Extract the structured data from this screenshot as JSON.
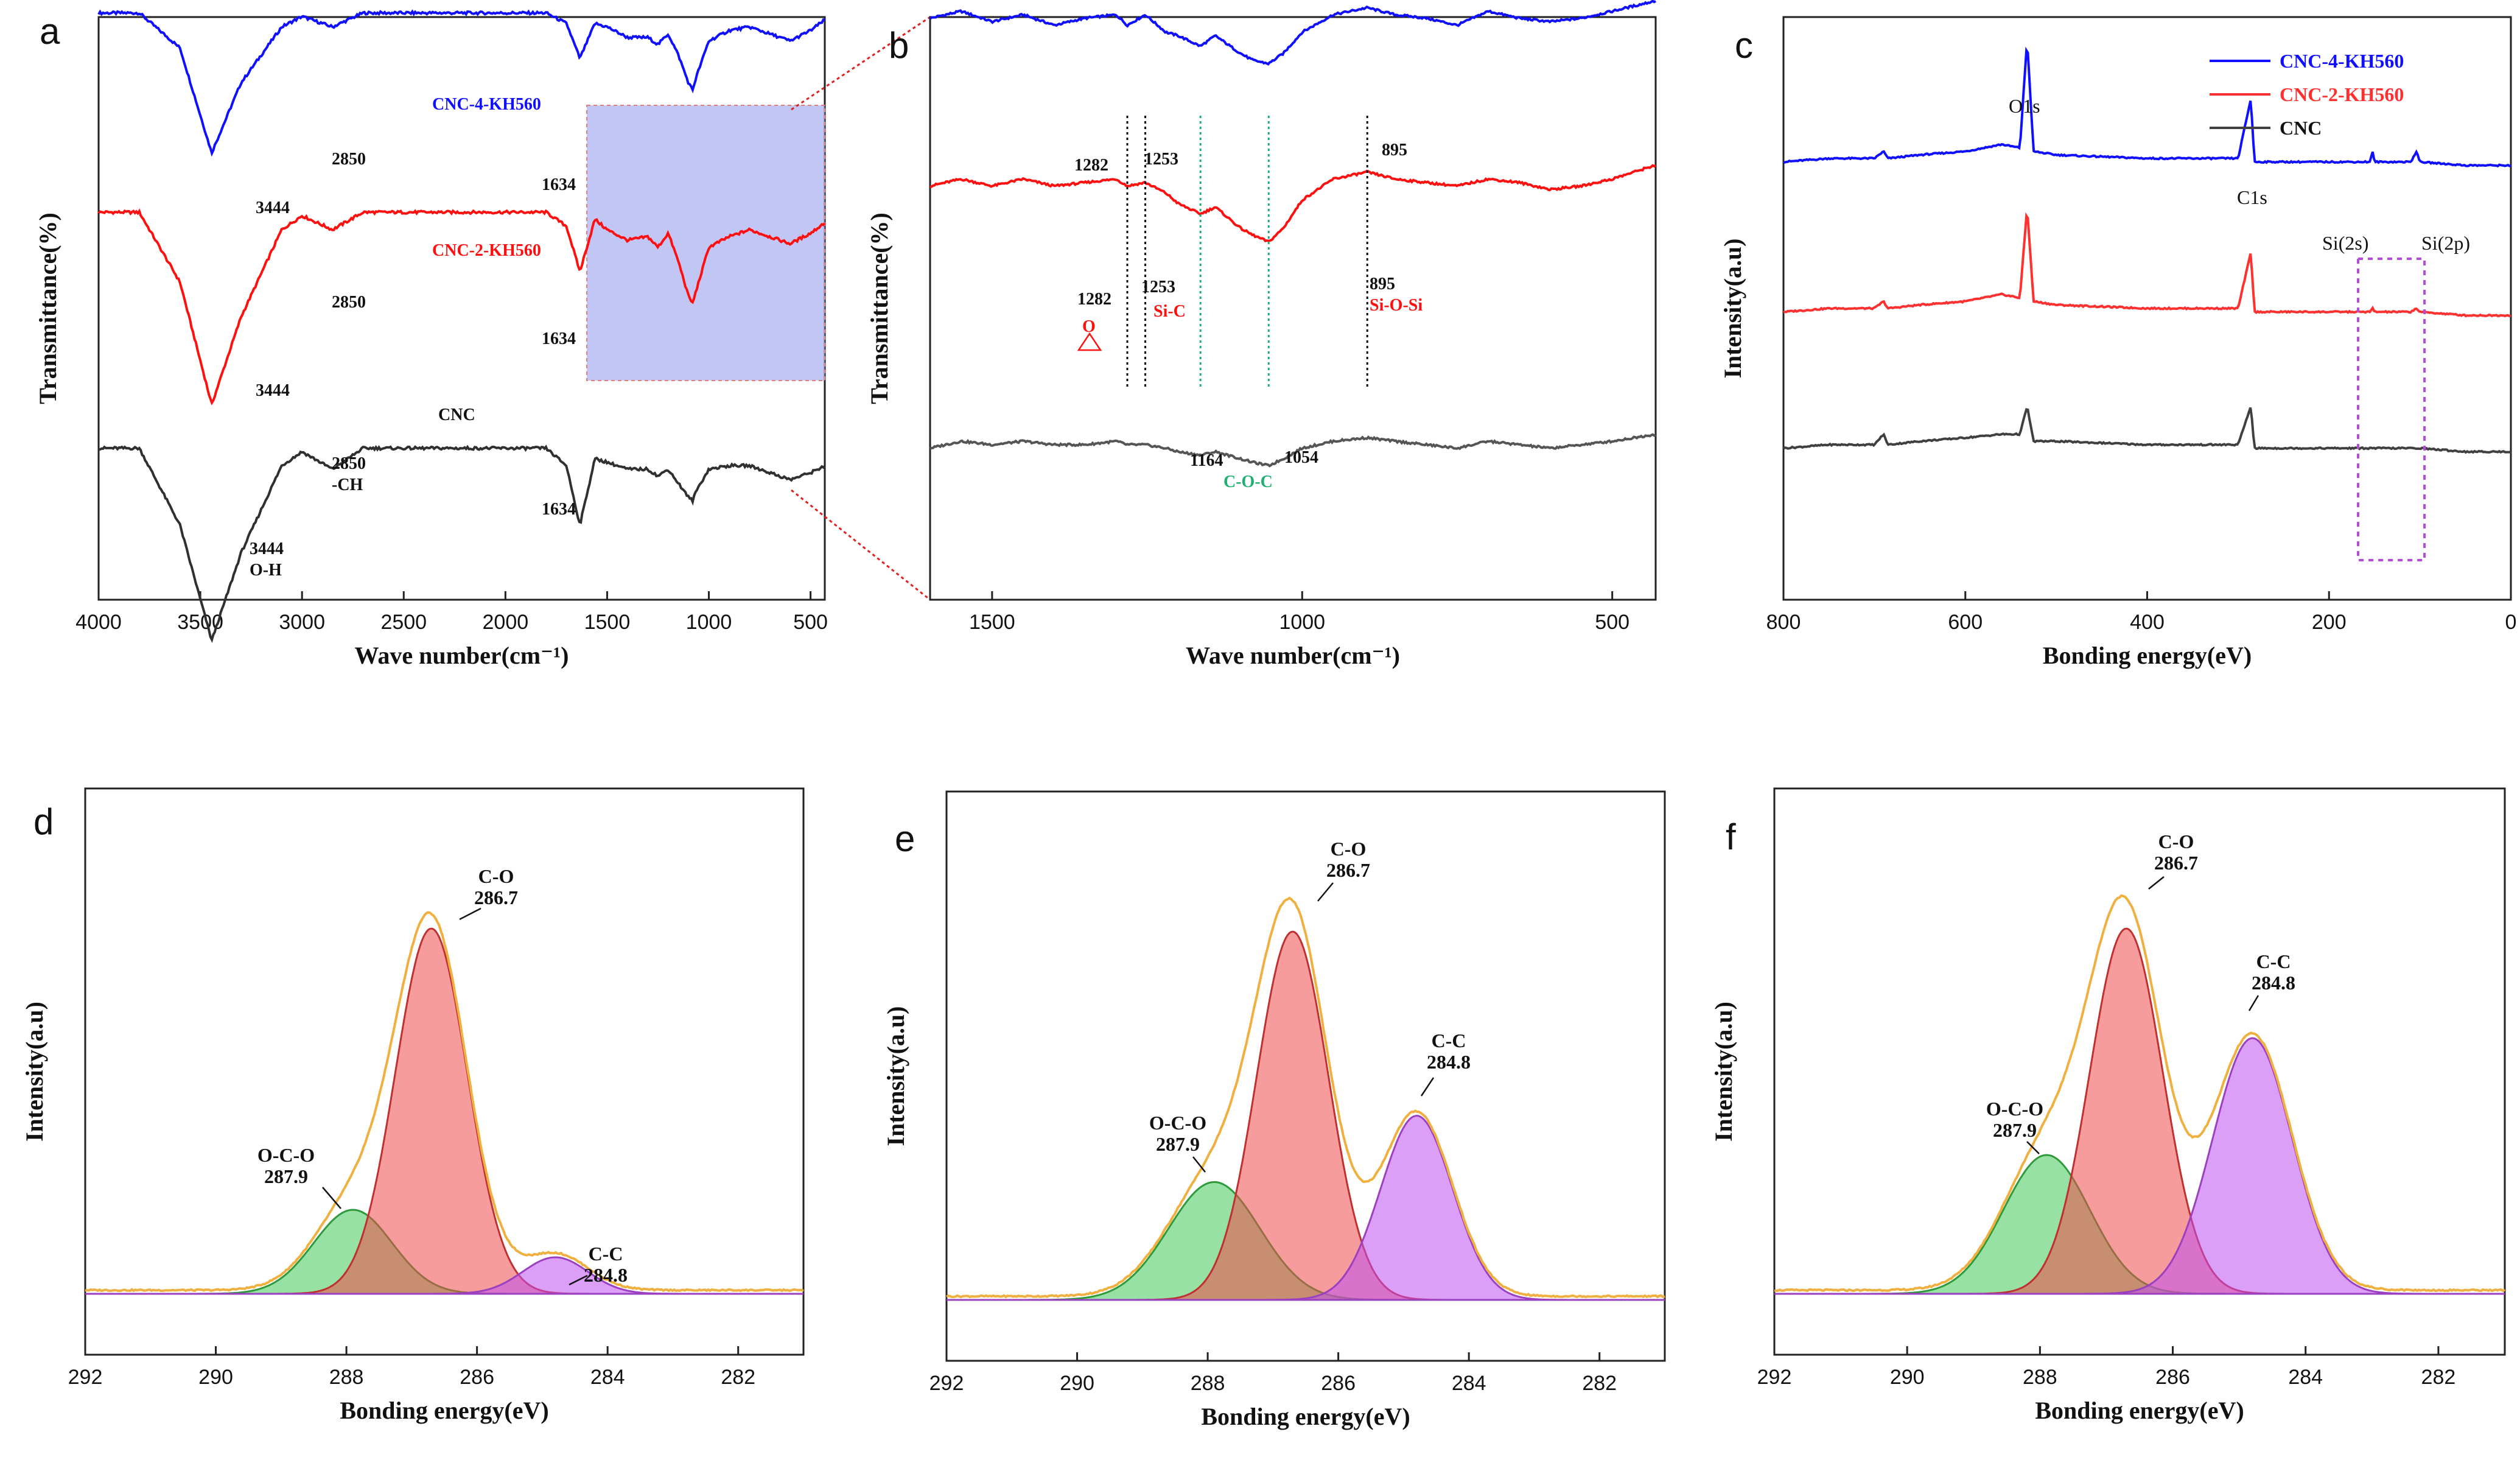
{
  "figure": {
    "panels": [
      {
        "id": "a",
        "letter": "a",
        "xlabel": "Wave number(cm⁻¹)",
        "ylabel": "Transmittance(%)",
        "xticks": [
          "4000",
          "3500",
          "3000",
          "2500",
          "2000",
          "1500",
          "1000",
          "500"
        ]
      },
      {
        "id": "b",
        "letter": "b",
        "xlabel": "Wave number(cm⁻¹)",
        "ylabel": "Transmittance(%)",
        "xticks": [
          "1500",
          "1000",
          "500"
        ]
      },
      {
        "id": "c",
        "letter": "c",
        "xlabel": "Bonding energy(eV)",
        "ylabel": "Intensity(a.u)",
        "xticks": [
          "800",
          "600",
          "400",
          "200",
          "0"
        ]
      },
      {
        "id": "d",
        "letter": "d",
        "xlabel": "Bonding energy(eV)",
        "ylabel": "Intensity(a.u)",
        "xticks": [
          "292",
          "290",
          "288",
          "286",
          "284",
          "282"
        ]
      },
      {
        "id": "e",
        "letter": "e",
        "xlabel": "Bonding energy(eV)",
        "ylabel": "Intensity(a.u)",
        "xticks": [
          "292",
          "290",
          "288",
          "286",
          "284",
          "282"
        ]
      },
      {
        "id": "f",
        "letter": "f",
        "xlabel": "Bonding energy(eV)",
        "ylabel": "Intensity(a.u)",
        "xticks": [
          "292",
          "290",
          "288",
          "286",
          "284",
          "282"
        ]
      }
    ]
  },
  "chart_data": [
    {
      "panel": "a",
      "type": "line",
      "title": "",
      "xlabel": "Wave number(cm⁻¹)",
      "ylabel": "Transmittance(%)",
      "xlim": [
        4000,
        430
      ],
      "series": [
        {
          "name": "CNC-4-KH560",
          "color": "#1010ff",
          "offset": 0.83,
          "x": [
            4000,
            3800,
            3600,
            3444,
            3300,
            3100,
            3000,
            2850,
            2700,
            2400,
            2000,
            1800,
            1700,
            1634,
            1560,
            1500,
            1400,
            1300,
            1250,
            1200,
            1150,
            1100,
            1080,
            1060,
            1000,
            900,
            800,
            700,
            600,
            500,
            430
          ],
          "y": [
            0,
            0,
            -0.1,
            -0.4,
            -0.2,
            -0.04,
            -0.01,
            -0.04,
            0,
            0,
            0,
            0,
            -0.03,
            -0.13,
            -0.03,
            -0.04,
            -0.07,
            -0.07,
            -0.09,
            -0.06,
            -0.12,
            -0.2,
            -0.22,
            -0.18,
            -0.08,
            -0.05,
            -0.04,
            -0.06,
            -0.08,
            -0.05,
            -0.02
          ]
        },
        {
          "name": "CNC-2-KH560",
          "color": "#ff1010",
          "offset": 0.45,
          "x": [
            4000,
            3800,
            3600,
            3444,
            3300,
            3100,
            3000,
            2850,
            2700,
            2400,
            2000,
            1800,
            1700,
            1634,
            1560,
            1500,
            1400,
            1300,
            1250,
            1200,
            1150,
            1100,
            1080,
            1060,
            1000,
            900,
            800,
            700,
            600,
            500,
            430
          ],
          "y": [
            0,
            0,
            -0.2,
            -0.55,
            -0.3,
            -0.05,
            -0.01,
            -0.05,
            0,
            0,
            0,
            0,
            -0.04,
            -0.17,
            -0.02,
            -0.05,
            -0.08,
            -0.07,
            -0.1,
            -0.06,
            -0.14,
            -0.24,
            -0.26,
            -0.22,
            -0.1,
            -0.07,
            -0.05,
            -0.07,
            -0.09,
            -0.06,
            -0.03
          ]
        },
        {
          "name": "CNC",
          "color": "#303030",
          "offset": 0.0,
          "x": [
            4000,
            3800,
            3600,
            3444,
            3300,
            3100,
            3000,
            2850,
            2700,
            2400,
            2000,
            1800,
            1700,
            1634,
            1560,
            1500,
            1400,
            1300,
            1250,
            1200,
            1150,
            1100,
            1080,
            1060,
            1000,
            900,
            800,
            700,
            600,
            500,
            430
          ],
          "y": [
            0,
            0,
            -0.22,
            -0.55,
            -0.3,
            -0.05,
            -0.01,
            -0.06,
            0,
            0,
            0,
            0,
            -0.05,
            -0.22,
            -0.03,
            -0.04,
            -0.06,
            -0.06,
            -0.08,
            -0.06,
            -0.1,
            -0.14,
            -0.15,
            -0.12,
            -0.06,
            -0.05,
            -0.05,
            -0.07,
            -0.09,
            -0.07,
            -0.05
          ]
        }
      ],
      "shaded_region": [
        1600,
        430
      ],
      "annotations": [
        {
          "text": "3444",
          "s": 0
        },
        {
          "text": "2850",
          "s": 0
        },
        {
          "text": "1634",
          "s": 0
        },
        {
          "text": "3444",
          "s": 1
        },
        {
          "text": "2850",
          "s": 1
        },
        {
          "text": "1634",
          "s": 1
        },
        {
          "text": "3444",
          "s": 2
        },
        {
          "text": "O-H",
          "s": 2
        },
        {
          "text": "2850",
          "s": 2
        },
        {
          "text": "-CH",
          "s": 2
        },
        {
          "text": "1634",
          "s": 2
        },
        {
          "text": "CNC-4-KH560"
        },
        {
          "text": "CNC-2-KH560"
        },
        {
          "text": "CNC"
        }
      ]
    },
    {
      "panel": "b",
      "type": "line",
      "title": "",
      "xlabel": "Wave number(cm⁻¹)",
      "ylabel": "Transmittance(%)",
      "xlim": [
        1600,
        430
      ],
      "series": [
        {
          "name": "CNC-4-KH560",
          "color": "#1010ff",
          "offset": 0.82,
          "x": [
            1600,
            1550,
            1500,
            1450,
            1400,
            1350,
            1300,
            1282,
            1253,
            1220,
            1200,
            1164,
            1140,
            1100,
            1080,
            1054,
            1030,
            1000,
            950,
            895,
            850,
            800,
            750,
            700,
            650,
            600,
            550,
            500,
            430
          ],
          "y": [
            0,
            0.02,
            -0.01,
            0.01,
            -0.02,
            0.0,
            0.01,
            -0.02,
            0.01,
            -0.04,
            -0.05,
            -0.08,
            -0.05,
            -0.1,
            -0.12,
            -0.13,
            -0.1,
            -0.04,
            0.01,
            0.03,
            0.01,
            0.0,
            -0.02,
            0.02,
            0.0,
            -0.01,
            0.0,
            0.02,
            0.05
          ]
        },
        {
          "name": "CNC-2-KH560",
          "color": "#ff1010",
          "offset": 0.5,
          "x": [
            1600,
            1550,
            1500,
            1450,
            1400,
            1350,
            1300,
            1282,
            1253,
            1220,
            1200,
            1164,
            1140,
            1100,
            1080,
            1054,
            1030,
            1000,
            950,
            895,
            850,
            800,
            750,
            700,
            650,
            600,
            550,
            500,
            430
          ],
          "y": [
            0,
            0.02,
            0.0,
            0.02,
            0.0,
            0.01,
            0.02,
            0.0,
            0.01,
            -0.02,
            -0.05,
            -0.08,
            -0.06,
            -0.12,
            -0.14,
            -0.16,
            -0.12,
            -0.04,
            0.02,
            0.04,
            0.02,
            0.01,
            0.0,
            0.02,
            0.01,
            -0.01,
            0.0,
            0.02,
            0.06
          ]
        },
        {
          "name": "CNC",
          "color": "#555555",
          "offset": 0.0,
          "x": [
            1600,
            1550,
            1500,
            1450,
            1400,
            1350,
            1300,
            1282,
            1253,
            1220,
            1200,
            1164,
            1140,
            1100,
            1080,
            1054,
            1030,
            1000,
            950,
            895,
            850,
            800,
            750,
            700,
            650,
            600,
            550,
            500,
            430
          ],
          "y": [
            0,
            0.02,
            0.01,
            0.02,
            0.01,
            0.01,
            0.02,
            0.01,
            0.01,
            0.0,
            -0.01,
            -0.02,
            -0.01,
            -0.03,
            -0.04,
            -0.05,
            -0.03,
            0.0,
            0.02,
            0.03,
            0.02,
            0.01,
            0.0,
            0.02,
            0.01,
            0.0,
            0.01,
            0.02,
            0.04
          ]
        }
      ],
      "annotations": [
        {
          "text": "1282"
        },
        {
          "text": "1253"
        },
        {
          "text": "895"
        },
        {
          "text": "1282"
        },
        {
          "text": "1253"
        },
        {
          "text": "Si-C"
        },
        {
          "text": "895"
        },
        {
          "text": "Si-O-Si"
        },
        {
          "text": "O"
        },
        {
          "text": "1164"
        },
        {
          "text": "1054"
        },
        {
          "text": "C-O-C"
        }
      ]
    },
    {
      "panel": "c",
      "type": "line",
      "title": "",
      "xlabel": "Bonding energy(eV)",
      "ylabel": "Intensity(a.u)",
      "xlim": [
        800,
        0
      ],
      "legend": [
        "CNC-4-KH560",
        "CNC-2-KH560",
        "CNC"
      ],
      "legend_position": "top-right",
      "series": [
        {
          "name": "CNC-4-KH560",
          "color": "#1010ff",
          "offset": 0.63,
          "x": [
            800,
            750,
            700,
            690,
            685,
            650,
            600,
            560,
            540,
            532,
            525,
            500,
            400,
            300,
            286,
            282,
            250,
            200,
            155,
            152,
            150,
            110,
            104,
            100,
            50,
            0
          ],
          "y": [
            0,
            0.01,
            0.01,
            0.03,
            0.01,
            0.02,
            0.03,
            0.05,
            0.04,
            0.35,
            0.03,
            0.02,
            0.01,
            0.01,
            0.18,
            0.0,
            0.0,
            0.0,
            0.0,
            0.03,
            0.0,
            0.0,
            0.03,
            0.0,
            -0.01,
            -0.01
          ]
        },
        {
          "name": "CNC-2-KH560",
          "color": "#ff3030",
          "offset": 0.3,
          "x": [
            800,
            750,
            700,
            690,
            685,
            650,
            600,
            560,
            540,
            532,
            525,
            500,
            400,
            300,
            286,
            282,
            250,
            200,
            155,
            152,
            150,
            110,
            104,
            100,
            50,
            0
          ],
          "y": [
            0,
            0.01,
            0.01,
            0.03,
            0.01,
            0.02,
            0.03,
            0.05,
            0.04,
            0.3,
            0.03,
            0.02,
            0.01,
            0.01,
            0.17,
            0.0,
            0.0,
            0.0,
            0.0,
            0.01,
            0.0,
            0.0,
            0.01,
            0.0,
            -0.01,
            -0.01
          ]
        },
        {
          "name": "CNC",
          "color": "#404040",
          "offset": 0.0,
          "x": [
            800,
            750,
            700,
            690,
            685,
            650,
            600,
            560,
            540,
            532,
            525,
            500,
            400,
            300,
            286,
            282,
            250,
            200,
            155,
            152,
            150,
            110,
            104,
            100,
            50,
            0
          ],
          "y": [
            0,
            0.01,
            0.01,
            0.04,
            0.01,
            0.02,
            0.03,
            0.04,
            0.04,
            0.12,
            0.02,
            0.02,
            0.01,
            0.01,
            0.12,
            0.0,
            0.0,
            0.0,
            0.0,
            0.0,
            0.0,
            0.0,
            0.0,
            0.0,
            -0.01,
            -0.01
          ]
        }
      ],
      "annotations": [
        {
          "text": "O1s"
        },
        {
          "text": "C1s"
        },
        {
          "text": "Si(2s)"
        },
        {
          "text": "Si(2p)"
        }
      ]
    },
    {
      "panel": "d",
      "type": "area",
      "title": "",
      "xlabel": "Bonding energy(eV)",
      "ylabel": "Intensity(a.u)",
      "xlim": [
        292,
        281
      ],
      "peaks": [
        {
          "name": "O-C-O",
          "center": 287.9,
          "height": 0.23,
          "sigma": 0.6
        },
        {
          "name": "C-O",
          "center": 286.7,
          "height": 1.0,
          "sigma": 0.55
        },
        {
          "name": "C-C",
          "center": 284.8,
          "height": 0.1,
          "sigma": 0.5
        }
      ],
      "labels": [
        {
          "name": "O-C-O",
          "value": "287.9"
        },
        {
          "name": "C-O",
          "value": "286.7"
        },
        {
          "name": "C-C",
          "value": "284.8"
        }
      ]
    },
    {
      "panel": "e",
      "type": "area",
      "title": "",
      "xlabel": "Bonding energy(eV)",
      "ylabel": "Intensity(a.u)",
      "xlim": [
        292,
        281
      ],
      "peaks": [
        {
          "name": "O-C-O",
          "center": 287.9,
          "height": 0.32,
          "sigma": 0.7
        },
        {
          "name": "C-O",
          "center": 286.7,
          "height": 1.0,
          "sigma": 0.55
        },
        {
          "name": "C-C",
          "center": 284.8,
          "height": 0.5,
          "sigma": 0.55
        }
      ],
      "labels": [
        {
          "name": "O-C-O",
          "value": "287.9"
        },
        {
          "name": "C-O",
          "value": "286.7"
        },
        {
          "name": "C-C",
          "value": "284.8"
        }
      ]
    },
    {
      "panel": "f",
      "type": "area",
      "title": "",
      "xlabel": "Bonding energy(eV)",
      "ylabel": "Intensity(a.u)",
      "xlim": [
        292,
        281
      ],
      "peaks": [
        {
          "name": "O-C-O",
          "center": 287.9,
          "height": 0.38,
          "sigma": 0.65
        },
        {
          "name": "C-O",
          "center": 286.7,
          "height": 1.0,
          "sigma": 0.55
        },
        {
          "name": "C-C",
          "center": 284.8,
          "height": 0.7,
          "sigma": 0.6
        }
      ],
      "labels": [
        {
          "name": "O-C-O",
          "value": "287.9"
        },
        {
          "name": "C-O",
          "value": "286.7"
        },
        {
          "name": "C-C",
          "value": "284.8"
        }
      ]
    }
  ]
}
